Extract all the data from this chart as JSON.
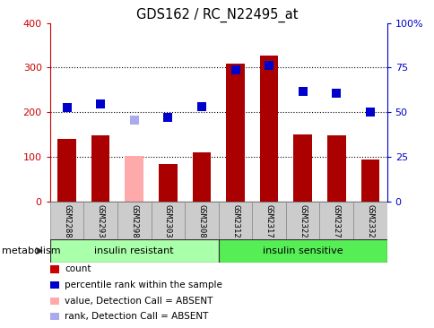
{
  "title": "GDS162 / RC_N22495_at",
  "categories": [
    "GSM2288",
    "GSM2293",
    "GSM2298",
    "GSM2303",
    "GSM2308",
    "GSM2312",
    "GSM2317",
    "GSM2322",
    "GSM2327",
    "GSM2332"
  ],
  "bar_values": [
    140,
    148,
    null,
    85,
    110,
    310,
    328,
    150,
    148,
    95
  ],
  "bar_absent_values": [
    null,
    null,
    102,
    null,
    null,
    null,
    null,
    null,
    null,
    null
  ],
  "bar_color": "#aa0000",
  "bar_absent_color": "#ffaaaa",
  "rank_values_pct": [
    52.5,
    54.5,
    null,
    47.0,
    53.0,
    73.5,
    76.3,
    61.8,
    60.8,
    50.0
  ],
  "rank_absent_values_pct": [
    null,
    null,
    45.5,
    null,
    null,
    null,
    null,
    null,
    null,
    null
  ],
  "rank_color": "#0000cc",
  "rank_absent_color": "#aaaaee",
  "ylim_left": [
    0,
    400
  ],
  "ylim_right": [
    0,
    100
  ],
  "yticks_left": [
    0,
    100,
    200,
    300,
    400
  ],
  "yticks_right": [
    0,
    25,
    50,
    75,
    100
  ],
  "ytick_labels_right": [
    "0",
    "25",
    "50",
    "75",
    "100%"
  ],
  "hlines": [
    100,
    200,
    300
  ],
  "groups": [
    {
      "label": "insulin resistant",
      "start": 0,
      "end": 5,
      "color": "#aaffaa"
    },
    {
      "label": "insulin sensitive",
      "start": 5,
      "end": 10,
      "color": "#55ee55"
    }
  ],
  "metabolism_label": "metabolism",
  "legend_items": [
    {
      "label": "count",
      "color": "#cc0000"
    },
    {
      "label": "percentile rank within the sample",
      "color": "#0000cc"
    },
    {
      "label": "value, Detection Call = ABSENT",
      "color": "#ffaaaa"
    },
    {
      "label": "rank, Detection Call = ABSENT",
      "color": "#aaaaee"
    }
  ],
  "background_color": "#ffffff",
  "bar_width": 0.55,
  "marker_size": 7
}
